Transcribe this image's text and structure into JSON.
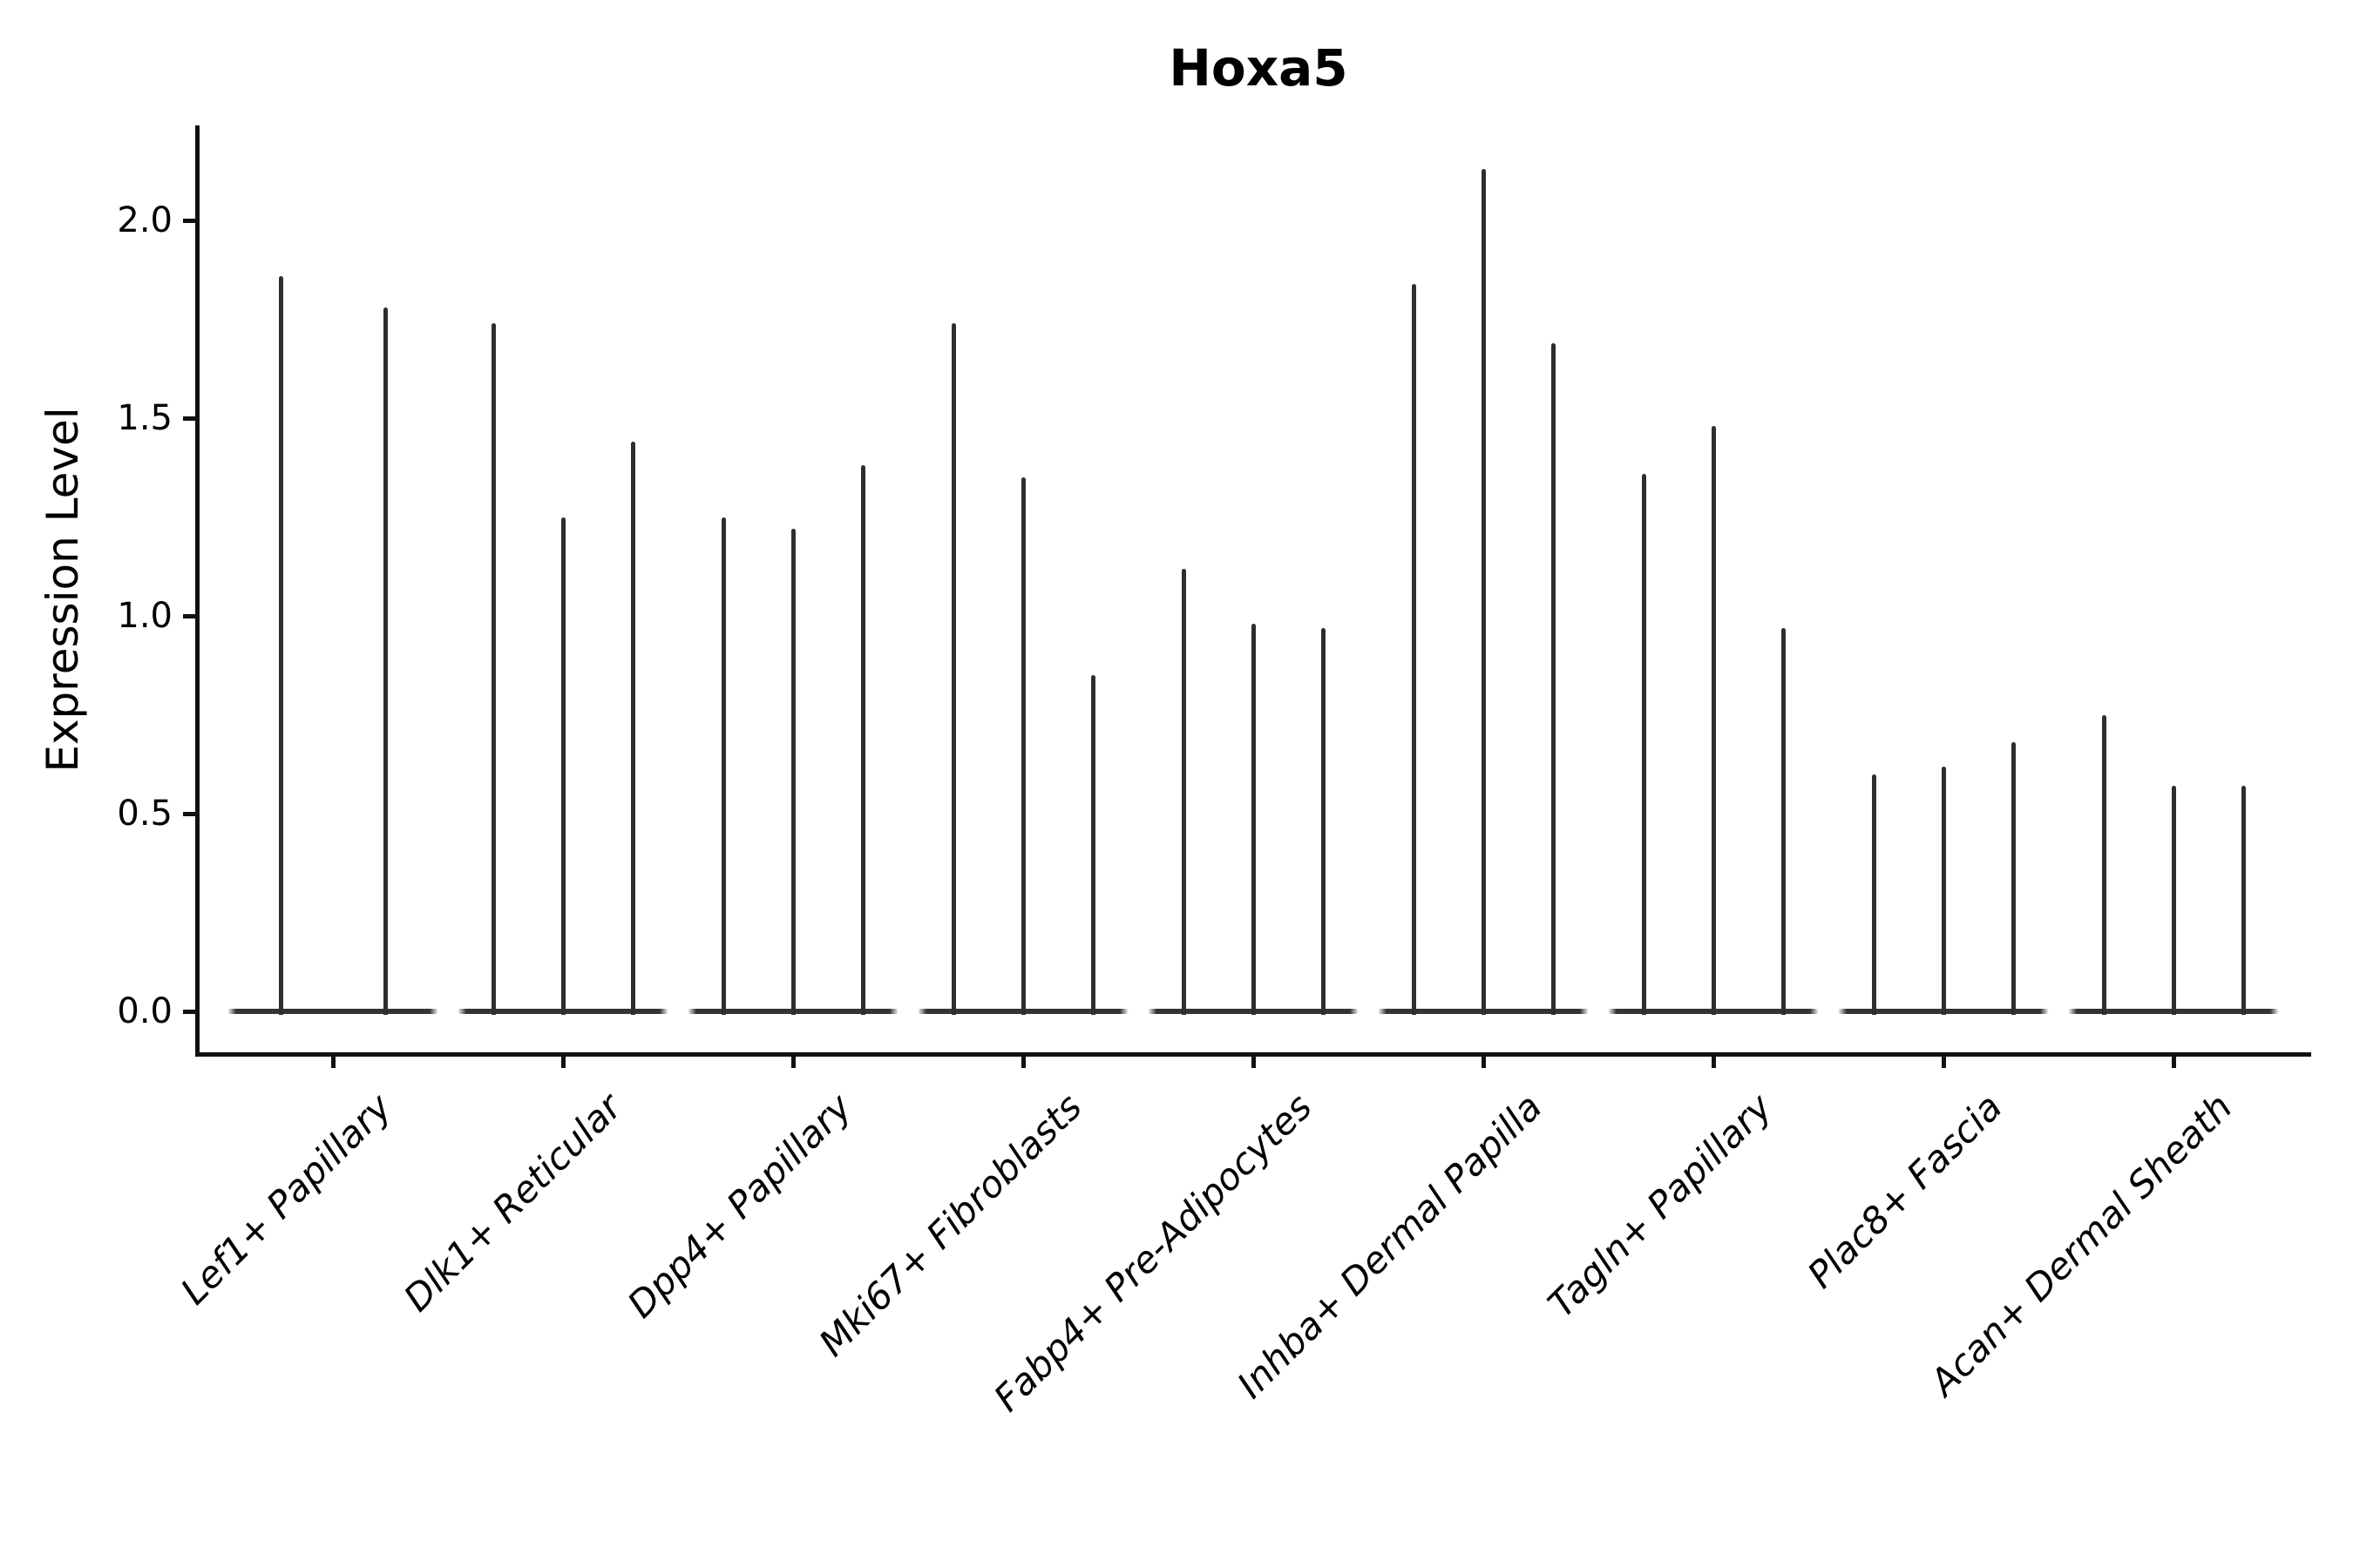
{
  "chart_data": {
    "type": "violin",
    "title": "Hoxa5",
    "xlabel": "",
    "ylabel": "Expression Level",
    "yticks": [
      "0.0",
      "0.5",
      "1.0",
      "1.5",
      "2.0"
    ],
    "ylim": [
      -0.1,
      2.24
    ],
    "grid": false,
    "legend": false,
    "violin_color": "#2e2e2e",
    "axis_color": "#111111",
    "categories": [
      "Lef1+ Papillary",
      "Dlk1+ Reticular",
      "Dpp4+ Papillary",
      "Mki67+ Fibroblasts",
      "Fabp4+ Pre-Adipocytes",
      "Inhba+ Dermal Papilla",
      "Tagln+ Papillary",
      "Plac8+ Fascia",
      "Acan+ Dermal Sheath"
    ],
    "values": [
      [
        1.86,
        1.78
      ],
      [
        1.74,
        1.25,
        1.44
      ],
      [
        1.25,
        1.22,
        1.38
      ],
      [
        1.74,
        1.35,
        0.85
      ],
      [
        1.12,
        0.98,
        0.97
      ],
      [
        1.84,
        2.13,
        1.69
      ],
      [
        1.36,
        1.48,
        0.97
      ],
      [
        0.6,
        0.62,
        0.68
      ],
      [
        0.75,
        0.57,
        0.57
      ]
    ],
    "note": "Thin violin spikes per sample; bulk of expression mass sits at 0 (flat base of each violin)."
  }
}
